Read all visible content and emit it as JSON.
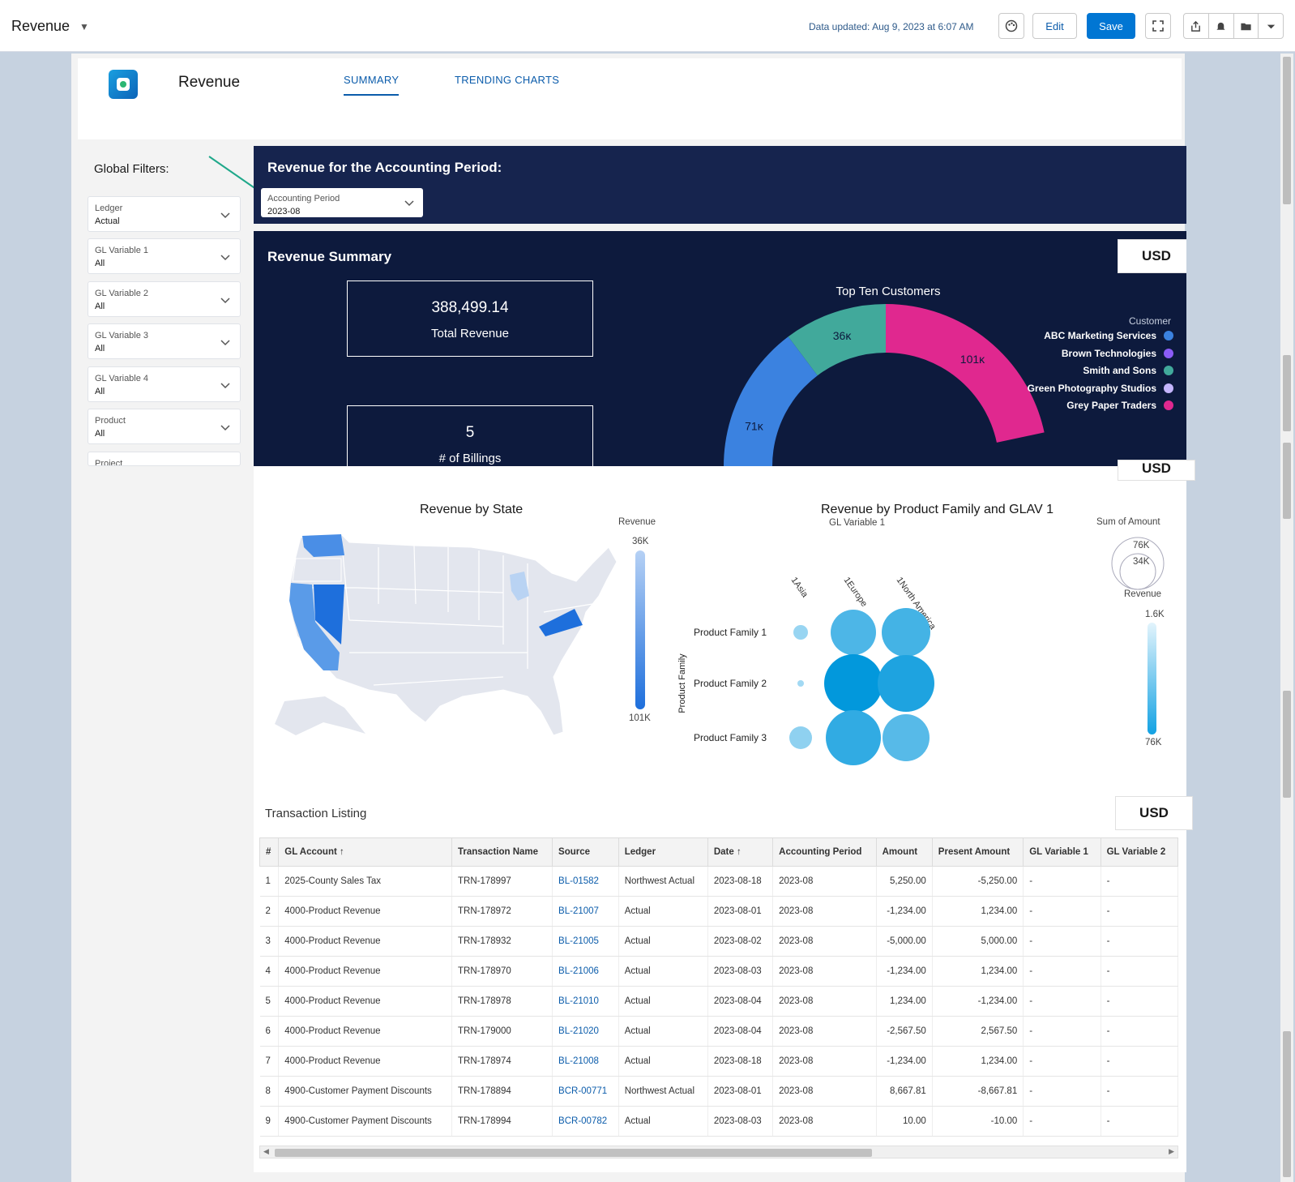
{
  "topbar": {
    "title": "Revenue",
    "updated": "Data updated: Aug 9, 2023 at 6:07 AM",
    "edit_label": "Edit",
    "save_label": "Save"
  },
  "header": {
    "dashboard_name": "Revenue",
    "tabs": [
      {
        "label": "SUMMARY"
      },
      {
        "label": "TRENDING CHARTS"
      }
    ]
  },
  "filters": {
    "title": "Global Filters:",
    "items": [
      {
        "label": "Ledger",
        "value": "Actual"
      },
      {
        "label": "GL Variable 1",
        "value": "All"
      },
      {
        "label": "GL Variable 2",
        "value": "All"
      },
      {
        "label": "GL Variable 3",
        "value": "All"
      },
      {
        "label": "GL Variable 4",
        "value": "All"
      },
      {
        "label": "Product",
        "value": "All"
      },
      {
        "label": "Project",
        "value": ""
      }
    ]
  },
  "period": {
    "title": "Revenue for the Accounting Period:",
    "select_label": "Accounting Period",
    "select_value": "2023-08"
  },
  "summary": {
    "title": "Revenue Summary",
    "currency": "USD",
    "kpis": [
      {
        "value": "388,499.14",
        "label": "Total Revenue"
      },
      {
        "value": "5",
        "label": "# of Billings"
      }
    ]
  },
  "chart_data": [
    {
      "type": "pie",
      "title": "Top Ten Customers",
      "legend_title": "Customer",
      "legend": [
        "ABC Marketing Services",
        "Brown Technologies",
        "Smith and Sons",
        "Green Photography Studios",
        "Grey Paper Traders"
      ],
      "colors": [
        "#3b82e0",
        "#8b5cf6",
        "#41a99b",
        "#c4b5fd",
        "#e0288f"
      ],
      "visible_slices": [
        {
          "label": "36K",
          "value": 36000,
          "color": "#41a99b"
        },
        {
          "label": "101K",
          "value": 101000,
          "color": "#e0288f"
        },
        {
          "label": "71K",
          "value": 71000,
          "color": "#3b82e0"
        }
      ]
    },
    {
      "type": "heatmap",
      "title": "Revenue by State",
      "legend_title": "Revenue",
      "range_labels": [
        "36K",
        "101K"
      ],
      "highlighted": [
        "Washington",
        "Oregon",
        "California",
        "Nevada",
        "Virginia",
        "Michigan"
      ]
    },
    {
      "type": "scatter",
      "title": "Revenue by Product Family and GLAV 1",
      "xlabel": "GL Variable 1",
      "ylabel": "Product Family",
      "x": [
        "1Asia",
        "1Europe",
        "1North America"
      ],
      "y": [
        "Product Family 1",
        "Product Family 2",
        "Product Family 3"
      ],
      "size_legend_title": "Sum of Amount",
      "size_labels": [
        "76K",
        "34K"
      ],
      "color_legend_title": "Revenue",
      "color_labels": [
        "1.6K",
        "76K"
      ],
      "size_values": [
        [
          9,
          28,
          30
        ],
        [
          4,
          36,
          35
        ],
        [
          14,
          34,
          29
        ]
      ],
      "color_values": [
        [
          0.2,
          0.6,
          0.65
        ],
        [
          0.15,
          1,
          0.85
        ],
        [
          0.25,
          0.75,
          0.55
        ]
      ]
    }
  ],
  "state_chart": {
    "title": "Revenue by State",
    "legend_title": "Revenue",
    "max_label": "36K",
    "min_label": "101K"
  },
  "bubble_chart": {
    "title": "Revenue by Product Family and GLAV 1",
    "x_title": "GL Variable 1",
    "y_title": "Product Family",
    "x_labels": [
      "1Asia",
      "1Europe",
      "1North America"
    ],
    "y_labels": [
      "Product Family 1",
      "Product Family 2",
      "Product Family 3"
    ],
    "size_title": "Sum of Amount",
    "size_big": "76K",
    "size_small": "34K",
    "color_title": "Revenue",
    "color_top": "1.6K",
    "color_bottom": "76K"
  },
  "donut": {
    "title": "Top Ten Customers",
    "legend_title": "Customer"
  },
  "transactions": {
    "title": "Transaction Listing",
    "currency": "USD",
    "columns": [
      "#",
      "GL Account",
      "Transaction Name",
      "Source",
      "Ledger",
      "Date",
      "Accounting Period",
      "Amount",
      "Present Amount",
      "GL Variable 1",
      "GL Variable 2"
    ],
    "rows": [
      [
        "1",
        "2025-County Sales Tax",
        "TRN-178997",
        "BL-01582",
        "Northwest Actual",
        "2023-08-18",
        "2023-08",
        "5,250.00",
        "-5,250.00",
        "-",
        "-"
      ],
      [
        "2",
        "4000-Product Revenue",
        "TRN-178972",
        "BL-21007",
        "Actual",
        "2023-08-01",
        "2023-08",
        "-1,234.00",
        "1,234.00",
        "-",
        "-"
      ],
      [
        "3",
        "4000-Product Revenue",
        "TRN-178932",
        "BL-21005",
        "Actual",
        "2023-08-02",
        "2023-08",
        "-5,000.00",
        "5,000.00",
        "-",
        "-"
      ],
      [
        "4",
        "4000-Product Revenue",
        "TRN-178970",
        "BL-21006",
        "Actual",
        "2023-08-03",
        "2023-08",
        "-1,234.00",
        "1,234.00",
        "-",
        "-"
      ],
      [
        "5",
        "4000-Product Revenue",
        "TRN-178978",
        "BL-21010",
        "Actual",
        "2023-08-04",
        "2023-08",
        "1,234.00",
        "-1,234.00",
        "-",
        "-"
      ],
      [
        "6",
        "4000-Product Revenue",
        "TRN-179000",
        "BL-21020",
        "Actual",
        "2023-08-04",
        "2023-08",
        "-2,567.50",
        "2,567.50",
        "-",
        "-"
      ],
      [
        "7",
        "4000-Product Revenue",
        "TRN-178974",
        "BL-21008",
        "Actual",
        "2023-08-18",
        "2023-08",
        "-1,234.00",
        "1,234.00",
        "-",
        "-"
      ],
      [
        "8",
        "4900-Customer Payment Discounts",
        "TRN-178894",
        "BCR-00771",
        "Northwest Actual",
        "2023-08-01",
        "2023-08",
        "8,667.81",
        "-8,667.81",
        "-",
        "-"
      ],
      [
        "9",
        "4900-Customer Payment Discounts",
        "TRN-178994",
        "BCR-00782",
        "Actual",
        "2023-08-03",
        "2023-08",
        "10.00",
        "-10.00",
        "-",
        "-"
      ]
    ]
  }
}
